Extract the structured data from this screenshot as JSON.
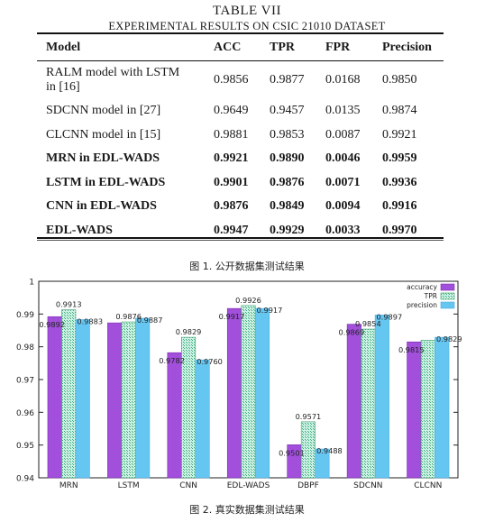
{
  "table": {
    "title": "TABLE VII",
    "subtitle": "EXPERIMENTAL RESULTS ON CSIC 21010 DATASET",
    "headers": [
      "Model",
      "ACC",
      "TPR",
      "FPR",
      "Precision"
    ],
    "rows": [
      {
        "model_line1": "RALM model with LSTM",
        "model_line2": "in [16]",
        "acc": "0.9856",
        "tpr": "0.9877",
        "fpr": "0.0168",
        "precision": "0.9850",
        "bold": false
      },
      {
        "model": "SDCNN model in [27]",
        "acc": "0.9649",
        "tpr": "0.9457",
        "fpr": "0.0135",
        "precision": "0.9874",
        "bold": false
      },
      {
        "model": "CLCNN model in [15]",
        "acc": "0.9881",
        "tpr": "0.9853",
        "fpr": "0.0087",
        "precision": "0.9921",
        "bold": false
      },
      {
        "model": "MRN in EDL-WADS",
        "acc": "0.9921",
        "tpr": "0.9890",
        "fpr": "0.0046",
        "precision": "0.9959",
        "bold": true
      },
      {
        "model": "LSTM in EDL-WADS",
        "acc": "0.9901",
        "tpr": "0.9876",
        "fpr": "0.0071",
        "precision": "0.9936",
        "bold": true
      },
      {
        "model": "CNN in EDL-WADS",
        "acc": "0.9876",
        "tpr": "0.9849",
        "fpr": "0.0094",
        "precision": "0.9916",
        "bold": true
      },
      {
        "model": "EDL-WADS",
        "acc": "0.9947",
        "tpr": "0.9929",
        "fpr": "0.0033",
        "precision": "0.9970",
        "bold": true
      }
    ]
  },
  "captions": {
    "fig1": "图 1. 公开数据集测试结果",
    "fig2": "图 2. 真实数据集测试结果"
  },
  "chart_data": {
    "type": "bar",
    "categories": [
      "MRN",
      "LSTM",
      "CNN",
      "EDL-WADS",
      "DBPF",
      "SDCNN",
      "CLCNN"
    ],
    "series": [
      {
        "name": "accuracy",
        "values": [
          0.9892,
          0.9873,
          0.9782,
          0.9917,
          0.9501,
          0.9869,
          0.9815
        ],
        "labels": [
          "0.9892",
          "",
          "0.9782",
          "0.9917",
          "0.9501",
          "0.9869",
          "0.9815"
        ]
      },
      {
        "name": "TPR",
        "values": [
          0.9913,
          0.9876,
          0.9829,
          0.9926,
          0.9571,
          0.9854,
          0.982
        ],
        "labels": [
          "0.9913",
          "0.9876",
          "0.9829",
          "0.9926",
          "0.9571",
          "0.9854",
          ""
        ]
      },
      {
        "name": "precision",
        "values": [
          0.9883,
          0.9887,
          0.976,
          0.9917,
          0.9488,
          0.9897,
          0.9829
        ],
        "labels": [
          "0.9883",
          "0.9887",
          "0.9760",
          "0.9917",
          "0.9488",
          "0.9897",
          "0.9829"
        ]
      }
    ],
    "ylim": [
      0.94,
      1.0
    ],
    "yticks": [
      "0.94",
      "0.95",
      "0.96",
      "0.97",
      "0.98",
      "0.99",
      "1"
    ],
    "legend": "top-right",
    "grid": false,
    "colors": {
      "accuracy": "#a24fdc",
      "TPR_fill": "#c9f0e6",
      "TPR_pattern": "#4cae7d",
      "precision": "#66c6f2"
    }
  }
}
